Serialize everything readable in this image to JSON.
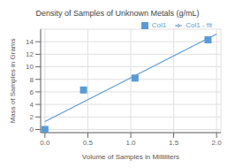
{
  "chart_data": {
    "type": "scatter",
    "title": "Density of Samples of Unknown Metals (g/mL)",
    "xlabel": "Volume of Samples in Milliliters",
    "ylabel": "Mass of Samples in Grams",
    "series": [
      {
        "name": "Col1",
        "type": "scatter",
        "color": "#5b9bd5",
        "marker": "square",
        "x": [
          0.0,
          0.45,
          1.05,
          1.9
        ],
        "values": [
          0.0,
          6.3,
          8.2,
          14.3
        ]
      },
      {
        "name": "Col1 - fit",
        "type": "line",
        "color": "#5b9bd5",
        "line_style": "solid",
        "x": [
          0.0,
          2.0
        ],
        "values": [
          1.26679012345679,
          15.227283950617284
        ]
      }
    ],
    "xlim": [
      -0.05,
      2.05
    ],
    "ylim": [
      -0.5,
      16
    ],
    "xticks": [
      {
        "value": 0,
        "label": "0.0"
      },
      0.5,
      {
        "value": 1.0,
        "label": "1.0"
      },
      1.5,
      {
        "value": 2.0,
        "label": "2.0"
      }
    ],
    "yticks": [
      0,
      2,
      4,
      6,
      8,
      10,
      12,
      14
    ],
    "grid": true,
    "legend": "upper right"
  }
}
